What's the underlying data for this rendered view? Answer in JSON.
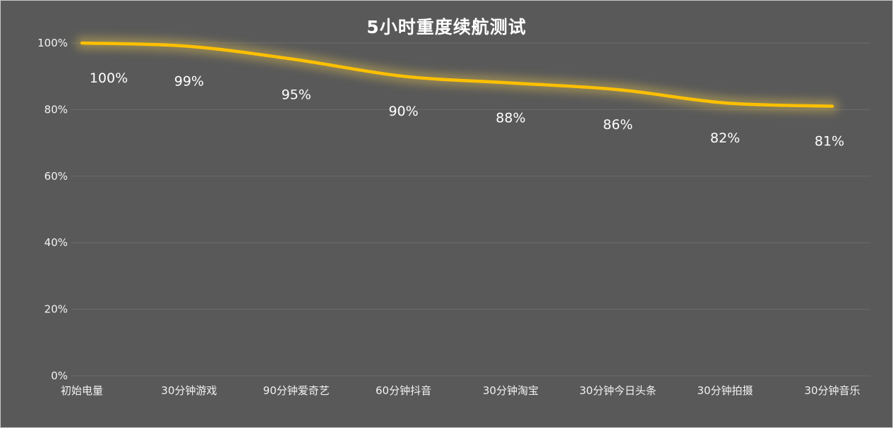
{
  "title": "5小时重度续航测试",
  "colors": {
    "background": "#595959",
    "line": "#FFC000",
    "line_glow": "#FFD84D",
    "grid": "#6b6b6b",
    "text": "#f2f2f2",
    "title_text": "#ffffff"
  },
  "chart_data": {
    "type": "line",
    "title": "5小时重度续航测试",
    "categories": [
      "初始电量",
      "30分钟游戏",
      "90分钟爱奇艺",
      "60分钟抖音",
      "30分钟淘宝",
      "30分钟今日头条",
      "30分钟拍摄",
      "30分钟音乐"
    ],
    "values": [
      100,
      99,
      95,
      90,
      88,
      86,
      82,
      81
    ],
    "point_labels": [
      "100%",
      "99%",
      "95%",
      "90%",
      "88%",
      "86%",
      "82%",
      "81%"
    ],
    "xlabel": "",
    "ylabel": "",
    "ylim": [
      0,
      100
    ],
    "ytick_values": [
      0,
      20,
      40,
      60,
      80,
      100
    ],
    "ytick_labels": [
      "0%",
      "20%",
      "40%",
      "60%",
      "80%",
      "100%"
    ],
    "grid": true,
    "legend": "none"
  }
}
